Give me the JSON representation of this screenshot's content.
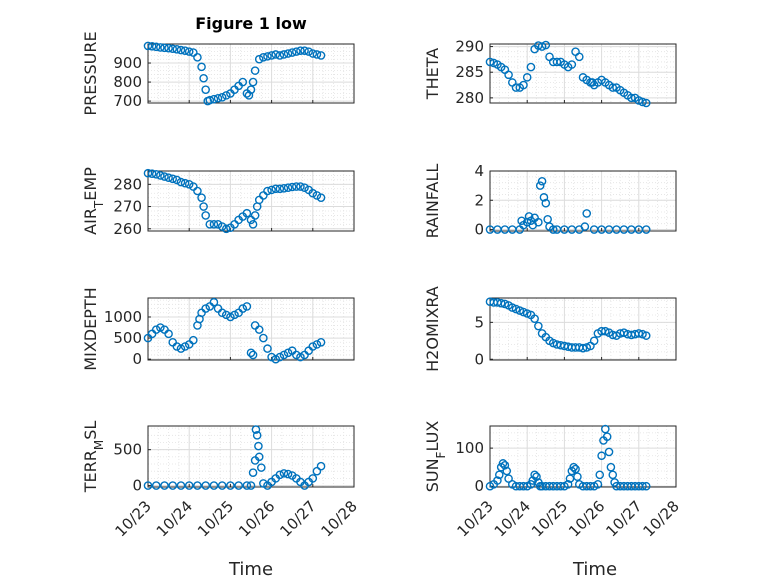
{
  "figure": {
    "title": "Figure 1 low",
    "xlabel": "Time"
  },
  "colors": {
    "marker": "#0072BD",
    "axis": "#262626",
    "grid": "#dcdcdc"
  },
  "chart_data": [
    {
      "type": "scatter",
      "ylabel": "PRESSURE",
      "title": "Figure 1 low",
      "ylim": [
        690,
        1000
      ],
      "yticks": [
        700,
        800,
        900
      ],
      "x": [
        23.0,
        23.1,
        23.2,
        23.3,
        23.4,
        23.5,
        23.6,
        23.7,
        23.8,
        23.9,
        24.0,
        24.1,
        24.2,
        24.3,
        24.35,
        24.4,
        24.45,
        24.5,
        24.6,
        24.7,
        24.8,
        24.9,
        25.0,
        25.1,
        25.2,
        25.3,
        25.4,
        25.45,
        25.5,
        25.55,
        25.6,
        25.7,
        25.8,
        25.9,
        26.0,
        26.1,
        26.2,
        26.3,
        26.4,
        26.5,
        26.6,
        26.7,
        26.8,
        26.9,
        27.0,
        27.1,
        27.2
      ],
      "y": [
        990,
        988,
        985,
        982,
        980,
        978,
        975,
        972,
        968,
        965,
        960,
        955,
        930,
        880,
        820,
        760,
        700,
        705,
        710,
        715,
        720,
        730,
        740,
        760,
        780,
        800,
        740,
        730,
        760,
        800,
        860,
        920,
        930,
        935,
        940,
        945,
        940,
        945,
        950,
        955,
        960,
        965,
        965,
        960,
        950,
        945,
        940
      ]
    },
    {
      "type": "scatter",
      "ylabel": "THETA",
      "ylim": [
        279,
        290.5
      ],
      "yticks": [
        280,
        285,
        290
      ],
      "x": [
        23.0,
        23.1,
        23.2,
        23.3,
        23.4,
        23.5,
        23.6,
        23.7,
        23.8,
        23.9,
        24.0,
        24.1,
        24.2,
        24.3,
        24.4,
        24.5,
        24.6,
        24.7,
        24.8,
        24.9,
        25.0,
        25.1,
        25.2,
        25.3,
        25.4,
        25.5,
        25.6,
        25.7,
        25.75,
        25.8,
        25.9,
        26.0,
        26.1,
        26.2,
        26.3,
        26.4,
        26.5,
        26.6,
        26.7,
        26.8,
        26.9,
        27.0,
        27.1,
        27.2
      ],
      "y": [
        287,
        286.8,
        286.5,
        286,
        285.5,
        284.5,
        283,
        282,
        282,
        282.5,
        284,
        286,
        289.5,
        290.2,
        290,
        290.3,
        288,
        287,
        287,
        287,
        286.5,
        286,
        286.5,
        289,
        288,
        284,
        283.5,
        283,
        283,
        282.5,
        283,
        283.5,
        283,
        282.5,
        282,
        282,
        281.5,
        281,
        280.5,
        280,
        280,
        279.5,
        279.2,
        279
      ]
    },
    {
      "type": "scatter",
      "ylabel": "AIR_TEMP",
      "ylim": [
        259,
        286
      ],
      "yticks": [
        260,
        270,
        280
      ],
      "x": [
        23.0,
        23.1,
        23.2,
        23.3,
        23.4,
        23.5,
        23.6,
        23.7,
        23.8,
        23.9,
        24.0,
        24.1,
        24.2,
        24.3,
        24.35,
        24.4,
        24.5,
        24.6,
        24.7,
        24.8,
        24.9,
        25.0,
        25.1,
        25.2,
        25.3,
        25.4,
        25.5,
        25.55,
        25.6,
        25.65,
        25.7,
        25.8,
        25.9,
        26.0,
        26.1,
        26.2,
        26.3,
        26.4,
        26.5,
        26.6,
        26.7,
        26.8,
        26.9,
        27.0,
        27.1,
        27.2
      ],
      "y": [
        285,
        284.8,
        284.5,
        284,
        283.5,
        283,
        282.5,
        282,
        281,
        280.5,
        280,
        279,
        277,
        274,
        270,
        266,
        262,
        262,
        262,
        261,
        260,
        260.5,
        262,
        264,
        265.5,
        267,
        264,
        262,
        266,
        270,
        273,
        275,
        277,
        277.5,
        278,
        278,
        278.2,
        278.5,
        278.8,
        279,
        279,
        278.5,
        277.5,
        276,
        275,
        274
      ]
    },
    {
      "type": "scatter",
      "ylabel": "RAINFALL",
      "ylim": [
        -0.1,
        4
      ],
      "yticks": [
        0,
        2,
        4
      ],
      "x": [
        23.0,
        23.2,
        23.4,
        23.6,
        23.8,
        23.85,
        23.9,
        24.0,
        24.05,
        24.1,
        24.15,
        24.2,
        24.3,
        24.35,
        24.4,
        24.45,
        24.5,
        24.55,
        24.6,
        24.7,
        24.8,
        25.0,
        25.2,
        25.4,
        25.55,
        25.6,
        25.8,
        26.0,
        26.2,
        26.4,
        26.6,
        26.8,
        27.0,
        27.2
      ],
      "y": [
        0,
        0,
        0,
        0,
        0,
        0.6,
        0.3,
        0.5,
        0.9,
        0.6,
        0.3,
        0.8,
        0.5,
        3.0,
        3.3,
        2.2,
        1.8,
        0.7,
        0.2,
        0,
        0,
        0,
        0,
        0,
        0.2,
        1.1,
        0,
        0,
        0,
        0,
        0,
        0,
        0,
        0
      ]
    },
    {
      "type": "scatter",
      "ylabel": "MIXDEPTH",
      "ylim": [
        -20,
        1450
      ],
      "yticks": [
        0,
        500,
        1000
      ],
      "x": [
        23.0,
        23.1,
        23.2,
        23.3,
        23.4,
        23.5,
        23.6,
        23.7,
        23.8,
        23.9,
        24.0,
        24.1,
        24.2,
        24.25,
        24.3,
        24.4,
        24.5,
        24.6,
        24.7,
        24.8,
        24.9,
        25.0,
        25.1,
        25.2,
        25.3,
        25.4,
        25.5,
        25.55,
        25.6,
        25.7,
        25.8,
        25.9,
        26.0,
        26.1,
        26.2,
        26.3,
        26.4,
        26.5,
        26.6,
        26.7,
        26.8,
        26.9,
        27.0,
        27.1,
        27.2
      ],
      "y": [
        500,
        600,
        700,
        750,
        700,
        600,
        400,
        300,
        250,
        300,
        350,
        450,
        800,
        950,
        1100,
        1200,
        1250,
        1350,
        1200,
        1100,
        1050,
        1000,
        1050,
        1100,
        1200,
        1250,
        150,
        100,
        800,
        700,
        500,
        250,
        50,
        0,
        50,
        100,
        150,
        200,
        100,
        50,
        100,
        200,
        300,
        350,
        400
      ]
    },
    {
      "type": "scatter",
      "ylabel": "H2OMIXRA",
      "ylim": [
        -0.1,
        8.3
      ],
      "yticks": [
        0,
        5
      ],
      "x": [
        23.0,
        23.1,
        23.2,
        23.3,
        23.4,
        23.5,
        23.6,
        23.7,
        23.8,
        23.9,
        24.0,
        24.1,
        24.2,
        24.3,
        24.4,
        24.5,
        24.6,
        24.7,
        24.8,
        24.9,
        25.0,
        25.1,
        25.2,
        25.3,
        25.4,
        25.5,
        25.6,
        25.7,
        25.8,
        25.9,
        26.0,
        26.1,
        26.2,
        26.3,
        26.4,
        26.5,
        26.6,
        26.7,
        26.8,
        26.9,
        27.0,
        27.1,
        27.2
      ],
      "y": [
        7.8,
        7.7,
        7.7,
        7.6,
        7.5,
        7.3,
        7,
        6.8,
        6.6,
        6.4,
        6.2,
        6.0,
        5.5,
        4.5,
        3.5,
        3.0,
        2.5,
        2.2,
        2.0,
        1.9,
        1.8,
        1.7,
        1.6,
        1.6,
        1.6,
        1.5,
        1.6,
        1.8,
        2.5,
        3.5,
        3.8,
        3.8,
        3.6,
        3.3,
        3.2,
        3.5,
        3.6,
        3.4,
        3.3,
        3.4,
        3.5,
        3.4,
        3.2
      ]
    },
    {
      "type": "scatter",
      "ylabel": "TERR_MSL",
      "ylim": [
        -20,
        830
      ],
      "yticks": [
        0,
        500
      ],
      "x": [
        23.0,
        23.2,
        23.4,
        23.6,
        23.8,
        24.0,
        24.2,
        24.4,
        24.6,
        24.8,
        25.0,
        25.2,
        25.4,
        25.5,
        25.55,
        25.6,
        25.62,
        25.65,
        25.68,
        25.7,
        25.75,
        25.8,
        25.9,
        26.0,
        26.1,
        26.2,
        26.3,
        26.4,
        26.5,
        26.6,
        26.7,
        26.8,
        26.9,
        27.0,
        27.1,
        27.2
      ],
      "y": [
        0,
        0,
        0,
        0,
        0,
        0,
        0,
        0,
        0,
        0,
        0,
        0,
        0,
        0,
        180,
        350,
        780,
        700,
        550,
        400,
        250,
        30,
        0,
        50,
        100,
        150,
        170,
        160,
        140,
        100,
        50,
        0,
        50,
        100,
        200,
        270
      ]
    },
    {
      "type": "scatter",
      "ylabel": "SUN_FLUX",
      "ylim": [
        -2,
        158
      ],
      "yticks": [
        0,
        100
      ],
      "x": [
        23.0,
        23.1,
        23.2,
        23.25,
        23.3,
        23.35,
        23.4,
        23.45,
        23.5,
        23.6,
        23.7,
        23.8,
        23.9,
        24.0,
        24.1,
        24.15,
        24.2,
        24.25,
        24.3,
        24.35,
        24.4,
        24.5,
        24.6,
        24.7,
        24.8,
        24.9,
        25.0,
        25.1,
        25.15,
        25.2,
        25.25,
        25.3,
        25.35,
        25.4,
        25.5,
        25.6,
        25.7,
        25.8,
        25.9,
        25.95,
        26.0,
        26.05,
        26.1,
        26.15,
        26.2,
        26.25,
        26.3,
        26.35,
        26.4,
        26.5,
        26.6,
        26.7,
        26.8,
        26.9,
        27.0,
        27.1,
        27.2
      ],
      "y": [
        0,
        5,
        15,
        30,
        50,
        60,
        55,
        40,
        20,
        5,
        0,
        0,
        0,
        0,
        5,
        15,
        30,
        25,
        10,
        0,
        0,
        0,
        0,
        0,
        0,
        0,
        0,
        5,
        20,
        40,
        50,
        45,
        25,
        5,
        0,
        0,
        0,
        0,
        5,
        30,
        80,
        120,
        150,
        130,
        90,
        50,
        30,
        10,
        0,
        0,
        0,
        0,
        0,
        0,
        0,
        0,
        0
      ]
    }
  ],
  "xaxis": {
    "xlim": [
      23.0,
      28.0
    ],
    "ticks": [
      23,
      24,
      25,
      26,
      27,
      28
    ],
    "ticklabels": [
      "10/23",
      "10/24",
      "10/25",
      "10/26",
      "10/27",
      "10/28"
    ]
  }
}
